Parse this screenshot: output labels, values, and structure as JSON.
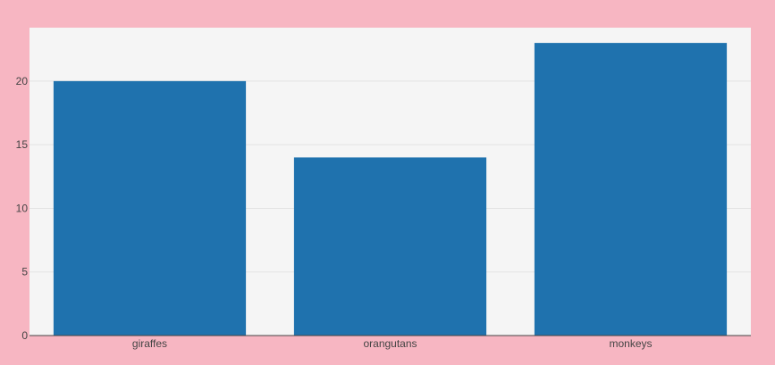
{
  "chart_data": {
    "type": "bar",
    "categories": [
      "giraffes",
      "orangutans",
      "monkeys"
    ],
    "values": [
      20,
      14,
      23
    ],
    "yticks": [
      0,
      5,
      10,
      15,
      20
    ],
    "ylim": [
      0,
      24.2
    ],
    "grid": true,
    "legend": "none",
    "colors": {
      "page_background": "#f7b6c2",
      "plot_background": "#f5f5f5",
      "bar": "#1f72ae",
      "grid": "#e3e3e3",
      "axis": "#444444"
    }
  }
}
